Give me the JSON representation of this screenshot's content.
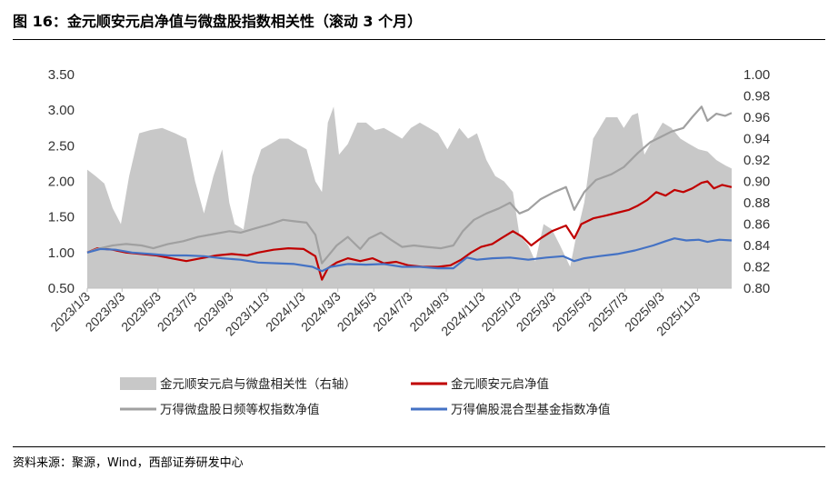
{
  "title": "图 16：金元顺安元启净值与微盘股指数相关性（滚动 3 个月）",
  "source": "资料来源：聚源，Wind，西部证券研发中心",
  "chart_data": {
    "type": "line",
    "left_axis": {
      "min": 0.5,
      "max": 3.5,
      "ticks": [
        "0.50",
        "1.00",
        "1.50",
        "2.00",
        "2.50",
        "3.00",
        "3.50"
      ]
    },
    "right_axis": {
      "min": 0.8,
      "max": 1.0,
      "ticks": [
        "0.80",
        "0.82",
        "0.84",
        "0.86",
        "0.88",
        "0.90",
        "0.92",
        "0.94",
        "0.96",
        "0.98",
        "1.00"
      ]
    },
    "x_ticks": [
      "2023/1/3",
      "2023/3/3",
      "2023/5/3",
      "2023/7/3",
      "2023/9/3",
      "2023/11/3",
      "2024/1/3",
      "2024/3/3",
      "2024/5/3",
      "2024/7/3",
      "2024/9/3",
      "2024/11/3",
      "2025/1/3",
      "2025/3/3",
      "2025/5/3",
      "2025/7/3",
      "2025/9/3",
      "2025/11/3"
    ],
    "x_range": [
      "2023/1/3",
      "2025/12/31"
    ],
    "series": [
      {
        "name": "金元顺安元启与微盘相关性（右轴）",
        "type": "area",
        "axis": "right",
        "color": "#c8c8c8",
        "points": [
          [
            "2023/1/3",
            0.911
          ],
          [
            "2023/1/17",
            0.905
          ],
          [
            "2023/2/1",
            0.898
          ],
          [
            "2023/2/15",
            0.875
          ],
          [
            "2023/3/1",
            0.86
          ],
          [
            "2023/3/15",
            0.905
          ],
          [
            "2023/4/1",
            0.945
          ],
          [
            "2023/4/20",
            0.948
          ],
          [
            "2023/5/10",
            0.95
          ],
          [
            "2023/6/1",
            0.945
          ],
          [
            "2023/6/20",
            0.94
          ],
          [
            "2023/7/5",
            0.9
          ],
          [
            "2023/7/20",
            0.87
          ],
          [
            "2023/8/5",
            0.905
          ],
          [
            "2023/8/20",
            0.93
          ],
          [
            "2023/9/1",
            0.88
          ],
          [
            "2023/9/10",
            0.86
          ],
          [
            "2023/9/25",
            0.855
          ],
          [
            "2023/10/10",
            0.905
          ],
          [
            "2023/10/25",
            0.93
          ],
          [
            "2023/11/10",
            0.935
          ],
          [
            "2023/11/25",
            0.94
          ],
          [
            "2023/12/10",
            0.94
          ],
          [
            "2023/12/25",
            0.935
          ],
          [
            "2024/1/10",
            0.93
          ],
          [
            "2024/1/25",
            0.9
          ],
          [
            "2024/2/5",
            0.89
          ],
          [
            "2024/2/15",
            0.955
          ],
          [
            "2024/2/25",
            0.97
          ],
          [
            "2024/3/5",
            0.925
          ],
          [
            "2024/3/20",
            0.935
          ],
          [
            "2024/4/5",
            0.955
          ],
          [
            "2024/4/20",
            0.955
          ],
          [
            "2024/5/5",
            0.948
          ],
          [
            "2024/5/20",
            0.95
          ],
          [
            "2024/6/5",
            0.945
          ],
          [
            "2024/6/20",
            0.94
          ],
          [
            "2024/7/5",
            0.95
          ],
          [
            "2024/7/20",
            0.955
          ],
          [
            "2024/8/5",
            0.95
          ],
          [
            "2024/8/20",
            0.945
          ],
          [
            "2024/9/5",
            0.93
          ],
          [
            "2024/9/25",
            0.95
          ],
          [
            "2024/10/10",
            0.94
          ],
          [
            "2024/10/25",
            0.945
          ],
          [
            "2024/11/10",
            0.92
          ],
          [
            "2024/11/25",
            0.905
          ],
          [
            "2024/12/10",
            0.9
          ],
          [
            "2024/12/25",
            0.89
          ],
          [
            "2025/1/5",
            0.85
          ],
          [
            "2025/1/20",
            0.84
          ],
          [
            "2025/2/1",
            0.825
          ],
          [
            "2025/2/15",
            0.86
          ],
          [
            "2025/3/1",
            0.855
          ],
          [
            "2025/3/15",
            0.84
          ],
          [
            "2025/4/1",
            0.82
          ],
          [
            "2025/4/10",
            0.845
          ],
          [
            "2025/4/25",
            0.88
          ],
          [
            "2025/5/10",
            0.94
          ],
          [
            "2025/6/1",
            0.96
          ],
          [
            "2025/6/20",
            0.96
          ],
          [
            "2025/7/1",
            0.95
          ],
          [
            "2025/7/15",
            0.962
          ],
          [
            "2025/7/25",
            0.964
          ],
          [
            "2025/8/5",
            0.925
          ],
          [
            "2025/8/20",
            0.94
          ],
          [
            "2025/9/5",
            0.955
          ],
          [
            "2025/9/20",
            0.95
          ],
          [
            "2025/10/5",
            0.94
          ],
          [
            "2025/10/20",
            0.935
          ],
          [
            "2025/11/5",
            0.93
          ],
          [
            "2025/11/20",
            0.928
          ],
          [
            "2025/12/5",
            0.92
          ],
          [
            "2025/12/20",
            0.915
          ],
          [
            "2025/12/31",
            0.912
          ]
        ]
      },
      {
        "name": "金元顺安元启净值",
        "type": "line",
        "axis": "left",
        "color": "#c00000",
        "points": [
          [
            "2023/1/3",
            1.0
          ],
          [
            "2023/1/20",
            1.06
          ],
          [
            "2023/2/15",
            1.04
          ],
          [
            "2023/3/10",
            1.0
          ],
          [
            "2023/4/5",
            0.98
          ],
          [
            "2023/5/1",
            0.96
          ],
          [
            "2023/5/25",
            0.92
          ],
          [
            "2023/6/20",
            0.88
          ],
          [
            "2023/7/15",
            0.92
          ],
          [
            "2023/8/10",
            0.96
          ],
          [
            "2023/9/5",
            0.98
          ],
          [
            "2023/10/1",
            0.96
          ],
          [
            "2023/10/20",
            1.0
          ],
          [
            "2023/11/15",
            1.04
          ],
          [
            "2023/12/10",
            1.06
          ],
          [
            "2024/1/5",
            1.05
          ],
          [
            "2024/1/25",
            0.95
          ],
          [
            "2024/2/5",
            0.62
          ],
          [
            "2024/2/15",
            0.78
          ],
          [
            "2024/3/1",
            0.86
          ],
          [
            "2024/3/20",
            0.92
          ],
          [
            "2024/4/10",
            0.88
          ],
          [
            "2024/5/1",
            0.92
          ],
          [
            "2024/5/20",
            0.85
          ],
          [
            "2024/6/10",
            0.87
          ],
          [
            "2024/7/1",
            0.82
          ],
          [
            "2024/7/25",
            0.8
          ],
          [
            "2024/8/20",
            0.8
          ],
          [
            "2024/9/10",
            0.82
          ],
          [
            "2024/9/28",
            0.9
          ],
          [
            "2024/10/15",
            1.0
          ],
          [
            "2024/11/1",
            1.08
          ],
          [
            "2024/11/20",
            1.12
          ],
          [
            "2024/12/5",
            1.2
          ],
          [
            "2024/12/25",
            1.3
          ],
          [
            "2025/1/10",
            1.22
          ],
          [
            "2025/1/25",
            1.1
          ],
          [
            "2025/2/10",
            1.2
          ],
          [
            "2025/3/1",
            1.3
          ],
          [
            "2025/3/25",
            1.38
          ],
          [
            "2025/4/8",
            1.2
          ],
          [
            "2025/4/20",
            1.4
          ],
          [
            "2025/5/10",
            1.48
          ],
          [
            "2025/6/1",
            1.52
          ],
          [
            "2025/6/20",
            1.56
          ],
          [
            "2025/7/10",
            1.6
          ],
          [
            "2025/7/25",
            1.66
          ],
          [
            "2025/8/10",
            1.74
          ],
          [
            "2025/8/25",
            1.85
          ],
          [
            "2025/9/10",
            1.8
          ],
          [
            "2025/9/25",
            1.88
          ],
          [
            "2025/10/10",
            1.85
          ],
          [
            "2025/10/25",
            1.9
          ],
          [
            "2025/11/10",
            1.98
          ],
          [
            "2025/11/20",
            2.0
          ],
          [
            "2025/12/1",
            1.9
          ],
          [
            "2025/12/15",
            1.95
          ],
          [
            "2025/12/31",
            1.92
          ]
        ]
      },
      {
        "name": "万得微盘股日频等权指数净值",
        "type": "line",
        "axis": "left",
        "color": "#a0a0a0",
        "points": [
          [
            "2023/1/3",
            1.0
          ],
          [
            "2023/1/20",
            1.05
          ],
          [
            "2023/2/15",
            1.1
          ],
          [
            "2023/3/10",
            1.12
          ],
          [
            "2023/4/5",
            1.1
          ],
          [
            "2023/4/25",
            1.06
          ],
          [
            "2023/5/20",
            1.12
          ],
          [
            "2023/6/15",
            1.16
          ],
          [
            "2023/7/10",
            1.22
          ],
          [
            "2023/8/5",
            1.26
          ],
          [
            "2023/9/1",
            1.3
          ],
          [
            "2023/9/20",
            1.28
          ],
          [
            "2023/10/15",
            1.34
          ],
          [
            "2023/11/10",
            1.4
          ],
          [
            "2023/12/1",
            1.46
          ],
          [
            "2023/12/20",
            1.44
          ],
          [
            "2024/1/10",
            1.42
          ],
          [
            "2024/1/25",
            1.25
          ],
          [
            "2024/2/5",
            0.85
          ],
          [
            "2024/2/15",
            0.95
          ],
          [
            "2024/3/1",
            1.1
          ],
          [
            "2024/3/20",
            1.22
          ],
          [
            "2024/4/10",
            1.05
          ],
          [
            "2024/4/25",
            1.2
          ],
          [
            "2024/5/15",
            1.28
          ],
          [
            "2024/6/1",
            1.18
          ],
          [
            "2024/6/20",
            1.08
          ],
          [
            "2024/7/10",
            1.1
          ],
          [
            "2024/8/1",
            1.08
          ],
          [
            "2024/8/25",
            1.06
          ],
          [
            "2024/9/15",
            1.1
          ],
          [
            "2024/10/1",
            1.3
          ],
          [
            "2024/10/20",
            1.46
          ],
          [
            "2024/11/10",
            1.55
          ],
          [
            "2024/12/1",
            1.62
          ],
          [
            "2024/12/20",
            1.7
          ],
          [
            "2025/1/5",
            1.55
          ],
          [
            "2025/1/20",
            1.6
          ],
          [
            "2025/2/10",
            1.75
          ],
          [
            "2025/3/5",
            1.85
          ],
          [
            "2025/3/25",
            1.92
          ],
          [
            "2025/4/8",
            1.6
          ],
          [
            "2025/4/25",
            1.85
          ],
          [
            "2025/5/15",
            2.02
          ],
          [
            "2025/6/10",
            2.1
          ],
          [
            "2025/7/1",
            2.2
          ],
          [
            "2025/7/25",
            2.4
          ],
          [
            "2025/8/15",
            2.55
          ],
          [
            "2025/9/1",
            2.62
          ],
          [
            "2025/9/20",
            2.7
          ],
          [
            "2025/10/10",
            2.75
          ],
          [
            "2025/10/25",
            2.9
          ],
          [
            "2025/11/10",
            3.05
          ],
          [
            "2025/11/20",
            2.85
          ],
          [
            "2025/12/5",
            2.95
          ],
          [
            "2025/12/20",
            2.92
          ],
          [
            "2025/12/31",
            2.96
          ]
        ]
      },
      {
        "name": "万得偏股混合型基金指数净值",
        "type": "line",
        "axis": "left",
        "color": "#4472c4",
        "points": [
          [
            "2023/1/3",
            1.0
          ],
          [
            "2023/1/25",
            1.05
          ],
          [
            "2023/2/20",
            1.04
          ],
          [
            "2023/3/20",
            1.0
          ],
          [
            "2023/4/20",
            0.98
          ],
          [
            "2023/5/20",
            0.96
          ],
          [
            "2023/6/20",
            0.96
          ],
          [
            "2023/7/20",
            0.95
          ],
          [
            "2023/8/20",
            0.92
          ],
          [
            "2023/9/20",
            0.9
          ],
          [
            "2023/10/20",
            0.86
          ],
          [
            "2023/11/20",
            0.85
          ],
          [
            "2023/12/20",
            0.84
          ],
          [
            "2024/1/20",
            0.8
          ],
          [
            "2024/2/5",
            0.74
          ],
          [
            "2024/2/20",
            0.8
          ],
          [
            "2024/3/20",
            0.84
          ],
          [
            "2024/4/20",
            0.83
          ],
          [
            "2024/5/20",
            0.84
          ],
          [
            "2024/6/20",
            0.8
          ],
          [
            "2024/7/20",
            0.8
          ],
          [
            "2024/8/20",
            0.78
          ],
          [
            "2024/9/15",
            0.78
          ],
          [
            "2024/10/8",
            0.93
          ],
          [
            "2024/10/25",
            0.9
          ],
          [
            "2024/11/20",
            0.92
          ],
          [
            "2024/12/20",
            0.93
          ],
          [
            "2025/1/20",
            0.9
          ],
          [
            "2025/2/20",
            0.93
          ],
          [
            "2025/3/20",
            0.95
          ],
          [
            "2025/4/8",
            0.88
          ],
          [
            "2025/4/25",
            0.92
          ],
          [
            "2025/5/20",
            0.95
          ],
          [
            "2025/6/20",
            0.98
          ],
          [
            "2025/7/20",
            1.03
          ],
          [
            "2025/8/20",
            1.1
          ],
          [
            "2025/9/10",
            1.16
          ],
          [
            "2025/9/25",
            1.2
          ],
          [
            "2025/10/15",
            1.17
          ],
          [
            "2025/11/5",
            1.18
          ],
          [
            "2025/11/20",
            1.15
          ],
          [
            "2025/12/10",
            1.18
          ],
          [
            "2025/12/31",
            1.17
          ]
        ]
      }
    ],
    "legend": {
      "position": "bottom",
      "items": [
        {
          "label": "金元顺安元启与微盘相关性（右轴）",
          "swatch": "area",
          "color": "#c8c8c8"
        },
        {
          "label": "金元顺安元启净值",
          "swatch": "line",
          "color": "#c00000"
        },
        {
          "label": "万得微盘股日频等权指数净值",
          "swatch": "line",
          "color": "#a0a0a0"
        },
        {
          "label": "万得偏股混合型基金指数净值",
          "swatch": "line",
          "color": "#4472c4"
        }
      ]
    }
  }
}
